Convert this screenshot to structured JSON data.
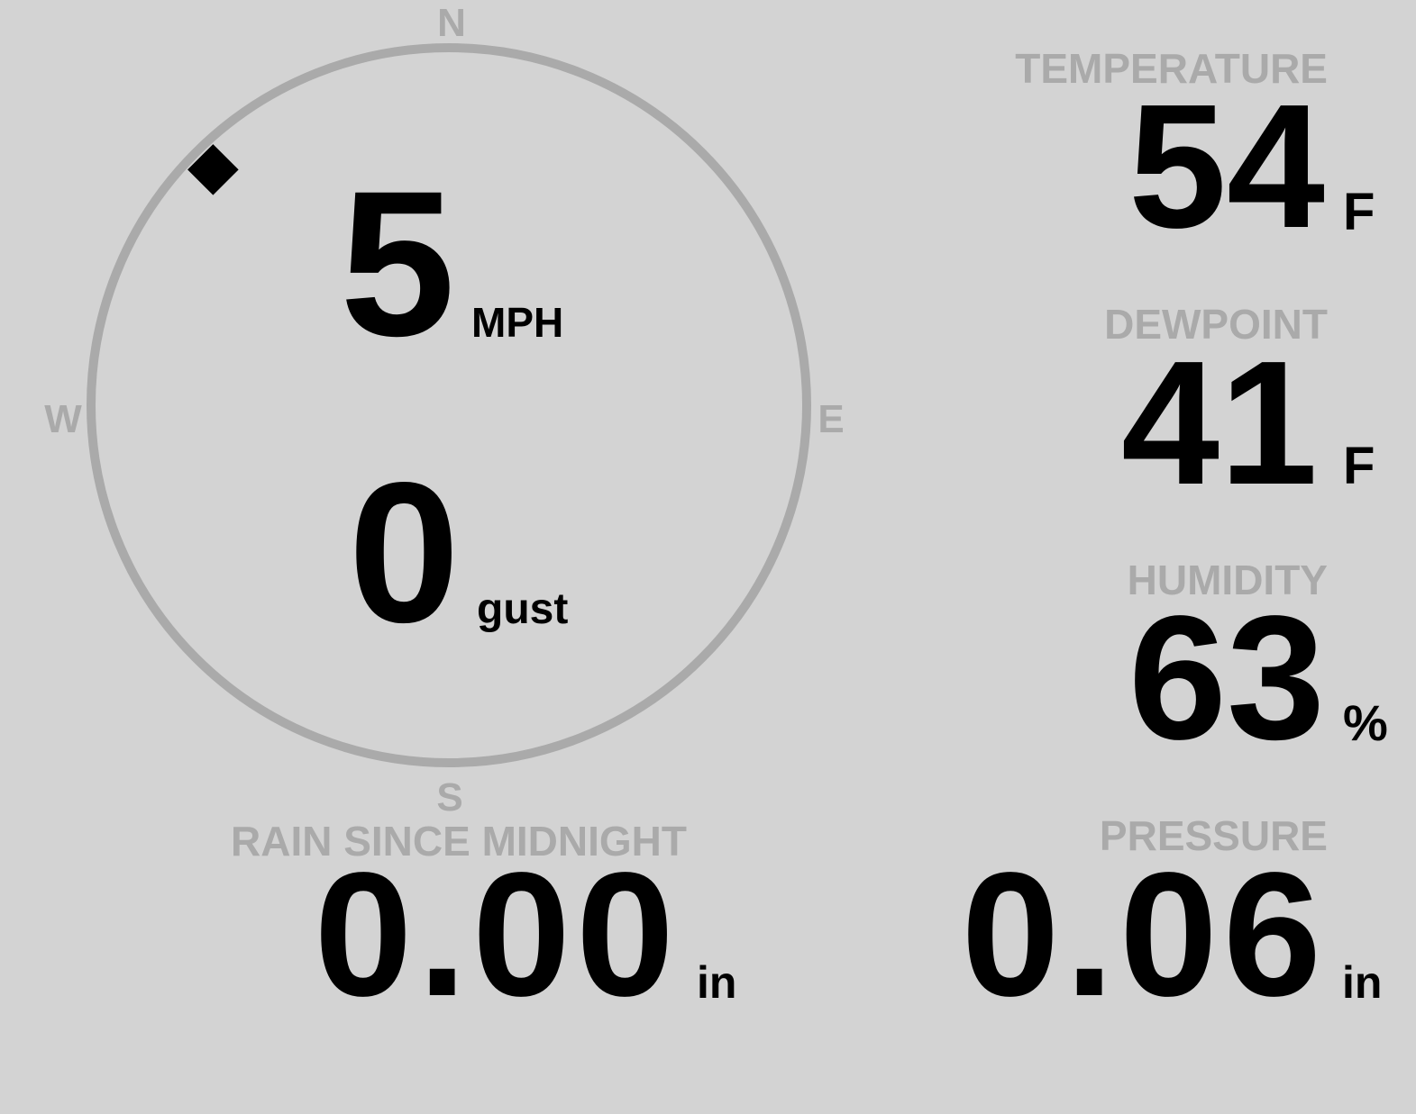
{
  "colors": {
    "background": "#d3d3d3",
    "label": "#aaaaaa",
    "value": "#000000",
    "compass_ring": "#aaaaaa"
  },
  "wind": {
    "compass": {
      "north": "N",
      "east": "E",
      "south": "S",
      "west": "W"
    },
    "direction_degrees": 315,
    "indicator_icon": "diamond-marker",
    "speed": "5",
    "speed_unit": "MPH",
    "gust": "0",
    "gust_unit": "gust"
  },
  "temperature": {
    "label": "TEMPERATURE",
    "value": "54",
    "unit": "F"
  },
  "dewpoint": {
    "label": "DEWPOINT",
    "value": "41",
    "unit": "F"
  },
  "humidity": {
    "label": "HUMIDITY",
    "value": "63",
    "unit": "%"
  },
  "rain": {
    "label": "RAIN SINCE MIDNIGHT",
    "value": "0.00",
    "unit": "in"
  },
  "pressure": {
    "label": "PRESSURE",
    "value": "0.06",
    "unit": "in"
  }
}
